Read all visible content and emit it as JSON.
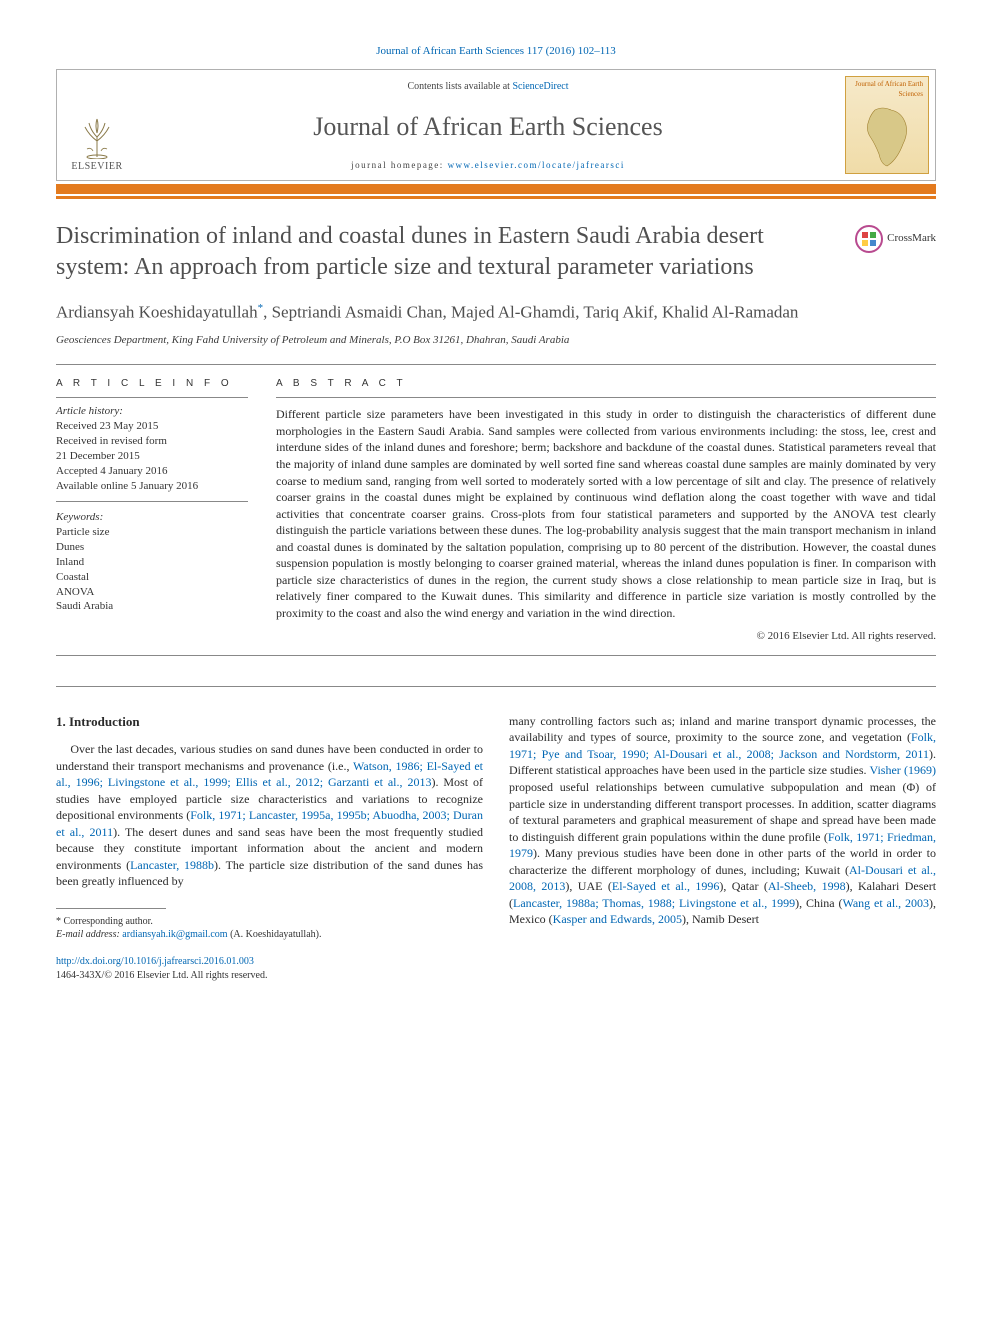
{
  "citation": "Journal of African Earth Sciences 117 (2016) 102–113",
  "header": {
    "contents_prefix": "Contents lists available at ",
    "contents_link": "ScienceDirect",
    "journal_name": "Journal of African Earth Sciences",
    "homepage_prefix": "journal homepage: ",
    "homepage_url": "www.elsevier.com/locate/jafrearsci",
    "elsevier_label": "ELSEVIER",
    "cover_small_title": "Journal of African Earth Sciences"
  },
  "colors": {
    "accent_orange": "#e37a1e",
    "link_blue": "#0066b3",
    "heading_gray": "#4f4f4f"
  },
  "crossmark": "CrossMark",
  "title": "Discrimination of inland and coastal dunes in Eastern Saudi Arabia desert system: An approach from particle size and textural parameter variations",
  "authors_html": "Ardiansyah Koeshidayatullah",
  "authors_rest": ", Septriandi Asmaidi Chan, Majed Al-Ghamdi, Tariq Akif, Khalid Al-Ramadan",
  "corr_mark": "*",
  "affiliation": "Geosciences Department, King Fahd University of Petroleum and Minerals, P.O Box 31261, Dhahran, Saudi Arabia",
  "article_info_label": "A R T I C L E   I N F O",
  "abstract_label": "A B S T R A C T",
  "history": {
    "label": "Article history:",
    "received": "Received 23 May 2015",
    "revised1": "Received in revised form",
    "revised2": "21 December 2015",
    "accepted": "Accepted 4 January 2016",
    "online": "Available online 5 January 2016"
  },
  "keywords_label": "Keywords:",
  "keywords": [
    "Particle size",
    "Dunes",
    "Inland",
    "Coastal",
    "ANOVA",
    "Saudi Arabia"
  ],
  "abstract": "Different particle size parameters have been investigated in this study in order to distinguish the characteristics of different dune morphologies in the Eastern Saudi Arabia. Sand samples were collected from various environments including: the stoss, lee, crest and interdune sides of the inland dunes and foreshore; berm; backshore and backdune of the coastal dunes. Statistical parameters reveal that the majority of inland dune samples are dominated by well sorted fine sand whereas coastal dune samples are mainly dominated by very coarse to medium sand, ranging from well sorted to moderately sorted with a low percentage of silt and clay. The presence of relatively coarser grains in the coastal dunes might be explained by continuous wind deflation along the coast together with wave and tidal activities that concentrate coarser grains. Cross-plots from four statistical parameters and supported by the ANOVA test clearly distinguish the particle variations between these dunes. The log-probability analysis suggest that the main transport mechanism in inland and coastal dunes is dominated by the saltation population, comprising up to 80 percent of the distribution. However, the coastal dunes suspension population is mostly belonging to coarser grained material, whereas the inland dunes population is finer. In comparison with particle size characteristics of dunes in the region, the current study shows a close relationship to mean particle size in Iraq, but is relatively finer compared to the Kuwait dunes. This similarity and difference in particle size variation is mostly controlled by the proximity to the coast and also the wind energy and variation in the wind direction.",
  "copyright": "© 2016 Elsevier Ltd. All rights reserved.",
  "section_heading": "1.  Introduction",
  "intro_left": "Over the last decades, various studies on sand dunes have been conducted in order to understand their transport mechanisms and provenance (i.e., <a class='ref'>Watson, 1986; El-Sayed et al., 1996; Livingstone et al., 1999; Ellis et al., 2012; Garzanti et al., 2013</a>). Most of studies have employed particle size characteristics and variations to recognize depositional environments (<a class='ref'>Folk, 1971; Lancaster, 1995a, 1995b; Abuodha, 2003; Duran et al., 2011</a>). The desert dunes and sand seas have been the most frequently studied because they constitute important information about the ancient and modern environments (<a class='ref'>Lancaster, 1988b</a>). The particle size distribution of the sand dunes has been greatly influenced by",
  "intro_right": "many controlling factors such as; inland and marine transport dynamic processes, the availability and types of source, proximity to the source zone, and vegetation (<a class='ref'>Folk, 1971; Pye and Tsoar, 1990; Al-Dousari et al., 2008; Jackson and Nordstorm, 2011</a>). Different statistical approaches have been used in the particle size studies. <a class='ref'>Visher (1969)</a> proposed useful relationships between cumulative subpopulation and mean (Φ) of particle size in understanding different transport processes. In addition, scatter diagrams of textural parameters and graphical measurement of shape and spread have been made to distinguish different grain populations within the dune profile (<a class='ref'>Folk, 1971; Friedman, 1979</a>). Many previous studies have been done in other parts of the world in order to characterize the different morphology of dunes, including; Kuwait (<a class='ref'>Al-Dousari et al., 2008, 2013</a>), UAE (<a class='ref'>El-Sayed et al., 1996</a>), Qatar (<a class='ref'>Al-Sheeb, 1998</a>), Kalahari Desert (<a class='ref'>Lancaster, 1988a; Thomas, 1988; Livingstone et al., 1999</a>), China (<a class='ref'>Wang et al., 2003</a>), Mexico (<a class='ref'>Kasper and Edwards, 2005</a>), Namib Desert",
  "footnotes": {
    "corr": "* Corresponding author.",
    "email_label": "E-mail address:",
    "email": "ardiansyah.ik@gmail.com",
    "email_tail": " (A. Koeshidayatullah)."
  },
  "bottom": {
    "doi": "http://dx.doi.org/10.1016/j.jafrearsci.2016.01.003",
    "issn_line": "1464-343X/© 2016 Elsevier Ltd. All rights reserved."
  }
}
